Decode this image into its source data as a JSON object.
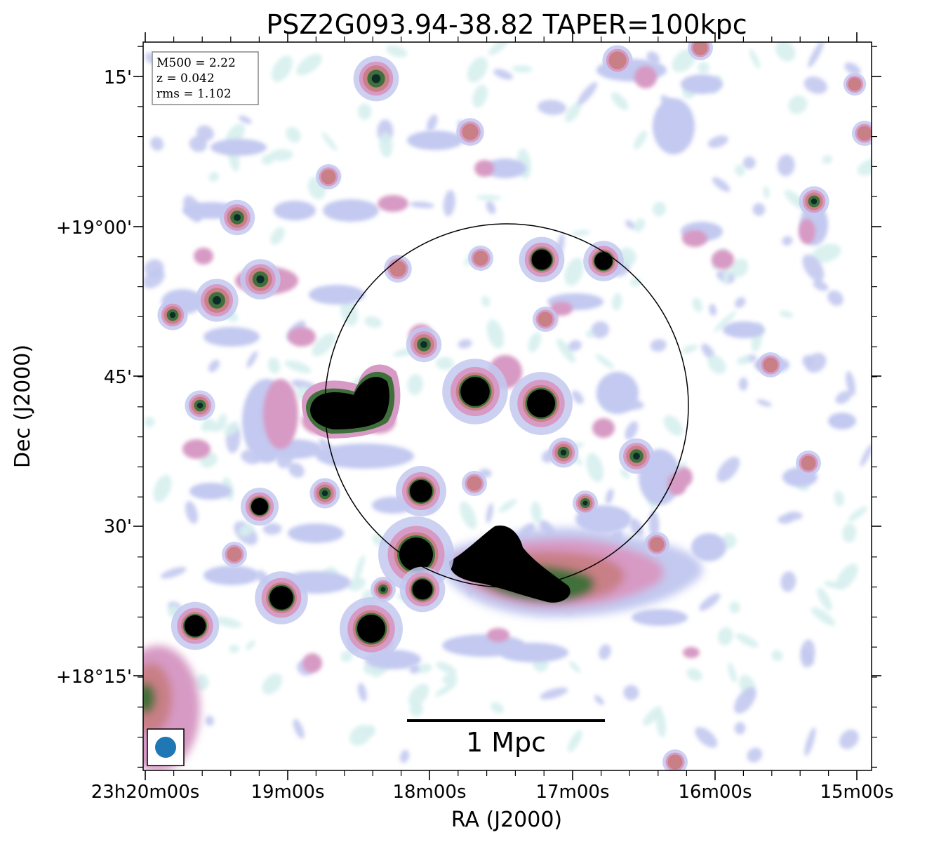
{
  "title": "PSZ2G093.94-38.82 TAPER=100kpc",
  "info_box": {
    "m500": "M500 = 2.22",
    "z": "z = 0.042",
    "rms": "rms = 1.102"
  },
  "axes": {
    "xlabel": "RA (J2000)",
    "ylabel": "Dec (J2000)",
    "x_ticks": [
      "23h20m00s",
      "19m00s",
      "18m00s",
      "17m00s",
      "16m00s",
      "15m00s"
    ],
    "y_ticks": [
      "15'",
      "+19°00'",
      "45'",
      "30'",
      "+18°15'"
    ]
  },
  "scale_bar": {
    "label": "1 Mpc"
  },
  "colors": {
    "faint": "#d6f0ee",
    "low": "#c3c9f0",
    "mid": "#d79ac4",
    "high": "#c97f86",
    "peak": "#3f6f3a",
    "core": "#000000",
    "beam": "#1f77b4"
  },
  "icons": {
    "beam": "beam-ellipse-icon"
  }
}
